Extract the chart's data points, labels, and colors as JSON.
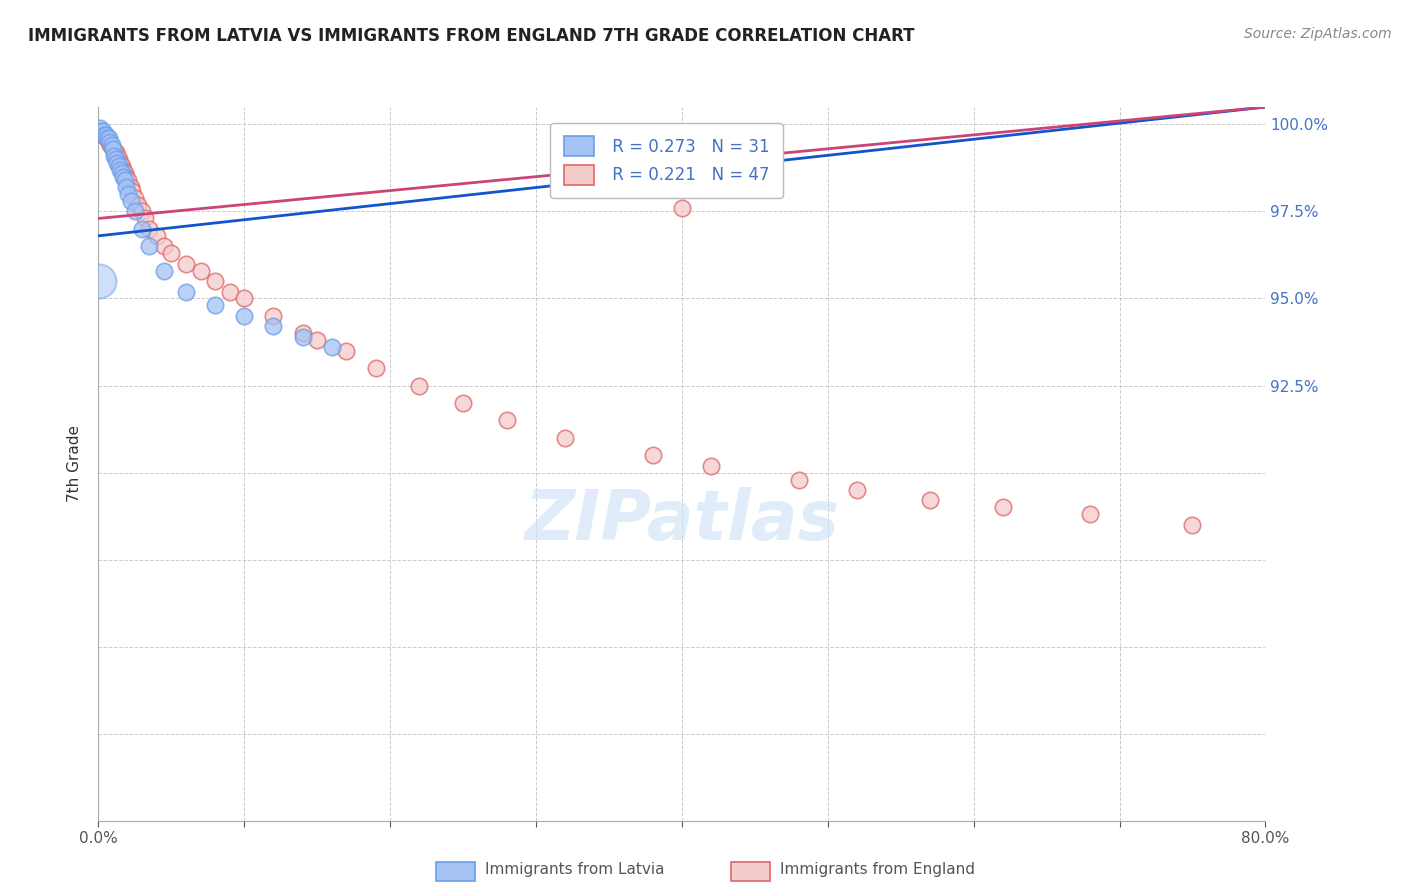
{
  "title": "IMMIGRANTS FROM LATVIA VS IMMIGRANTS FROM ENGLAND 7TH GRADE CORRELATION CHART",
  "source": "Source: ZipAtlas.com",
  "ylabel": "7th Grade",
  "xlim": [
    0.0,
    80.0
  ],
  "ylim": [
    80.0,
    100.5
  ],
  "xticks": [
    0.0,
    10.0,
    20.0,
    30.0,
    40.0,
    50.0,
    60.0,
    70.0,
    80.0
  ],
  "yticks": [
    80.0,
    82.5,
    85.0,
    87.5,
    90.0,
    92.5,
    95.0,
    97.5,
    100.0
  ],
  "xticklabels": [
    "0.0%",
    "",
    "",
    "",
    "",
    "",
    "",
    "",
    "80.0%"
  ],
  "yticklabels_right": [
    "",
    "",
    "",
    "",
    "",
    "92.5%",
    "95.0%",
    "97.5%",
    "100.0%"
  ],
  "latvia_color": "#a4c2f4",
  "england_color": "#f4cccc",
  "latvia_edge_color": "#6d9eeb",
  "england_edge_color": "#e06666",
  "latvia_line_color": "#1155cc",
  "england_line_color": "#cc4477",
  "R_latvia": 0.273,
  "N_latvia": 31,
  "R_england": 0.221,
  "N_england": 47,
  "legend_label_latvia": "Immigrants from Latvia",
  "legend_label_england": "Immigrants from England",
  "background_color": "#ffffff",
  "grid_color": "#cccccc",
  "tick_color": "#4472c4",
  "latvia_x": [
    0.1,
    0.2,
    0.3,
    0.4,
    0.5,
    0.6,
    0.7,
    0.8,
    0.9,
    1.0,
    1.1,
    1.2,
    1.3,
    1.4,
    1.5,
    1.6,
    1.7,
    1.8,
    1.9,
    2.0,
    2.2,
    2.5,
    3.0,
    3.5,
    4.5,
    6.0,
    8.0,
    10.0,
    12.0,
    14.0,
    16.0
  ],
  "latvia_y": [
    99.9,
    99.8,
    99.8,
    99.7,
    99.7,
    99.6,
    99.6,
    99.5,
    99.4,
    99.3,
    99.1,
    99.0,
    98.9,
    98.8,
    98.7,
    98.6,
    98.5,
    98.4,
    98.2,
    98.0,
    97.8,
    97.5,
    97.0,
    96.5,
    95.8,
    95.2,
    94.8,
    94.5,
    94.2,
    93.9,
    93.6
  ],
  "latvia_size": [
    120,
    120,
    120,
    120,
    120,
    120,
    120,
    120,
    120,
    120,
    120,
    120,
    120,
    120,
    120,
    120,
    120,
    120,
    120,
    120,
    120,
    120,
    120,
    120,
    120,
    120,
    120,
    120,
    120,
    120,
    120
  ],
  "latvia_big_x": [
    0.05
  ],
  "latvia_big_y": [
    95.5
  ],
  "latvia_big_s": [
    600
  ],
  "england_x": [
    0.3,
    0.5,
    0.7,
    0.8,
    1.0,
    1.1,
    1.2,
    1.3,
    1.4,
    1.5,
    1.6,
    1.7,
    1.8,
    1.9,
    2.0,
    2.2,
    2.3,
    2.5,
    2.7,
    3.0,
    3.2,
    3.5,
    4.0,
    4.5,
    5.0,
    6.0,
    7.0,
    8.0,
    9.0,
    10.0,
    12.0,
    14.0,
    15.0,
    17.0,
    19.0,
    22.0,
    25.0,
    28.0,
    32.0,
    38.0,
    42.0,
    48.0,
    52.0,
    57.0,
    62.0,
    68.0,
    75.0
  ],
  "england_y": [
    99.7,
    99.6,
    99.5,
    99.4,
    99.3,
    99.2,
    99.2,
    99.1,
    99.0,
    98.9,
    98.8,
    98.7,
    98.6,
    98.5,
    98.4,
    98.2,
    98.1,
    97.9,
    97.7,
    97.5,
    97.3,
    97.0,
    96.8,
    96.5,
    96.3,
    96.0,
    95.8,
    95.5,
    95.2,
    95.0,
    94.5,
    94.0,
    93.8,
    93.5,
    93.0,
    92.5,
    92.0,
    91.5,
    91.0,
    90.5,
    90.2,
    89.8,
    89.5,
    89.2,
    89.0,
    88.8,
    88.5
  ],
  "england_outlier_x": [
    40.0
  ],
  "england_outlier_y": [
    97.6
  ],
  "latvia_regline_x0": 0.0,
  "latvia_regline_y0": 96.8,
  "latvia_regline_x1": 80.0,
  "latvia_regline_y1": 100.5,
  "england_regline_x0": 0.0,
  "england_regline_y0": 97.3,
  "england_regline_x1": 80.0,
  "england_regline_y1": 100.5
}
